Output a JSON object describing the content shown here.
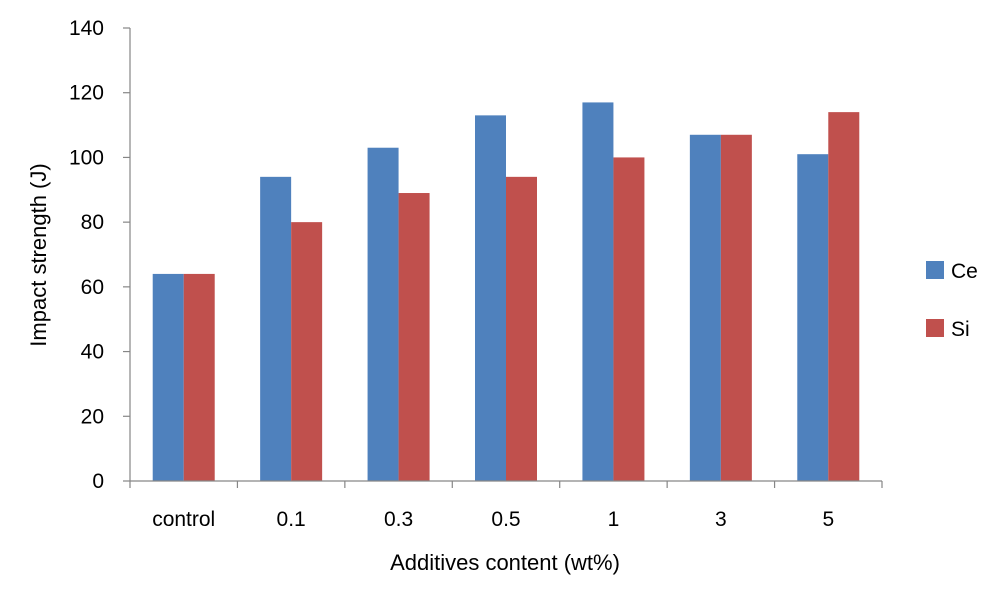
{
  "chart_data": {
    "type": "bar",
    "title": "",
    "xlabel": "Additives content (wt%)",
    "ylabel": "Impact strength (J)",
    "categories": [
      "control",
      "0.1",
      "0.3",
      "0.5",
      "1",
      "3",
      "5"
    ],
    "series": [
      {
        "name": "Ce",
        "color": "#4F81BD",
        "values": [
          64,
          94,
          103,
          113,
          117,
          107,
          101
        ]
      },
      {
        "name": "Si",
        "color": "#C0504D",
        "values": [
          64,
          80,
          89,
          94,
          100,
          107,
          114
        ]
      }
    ],
    "ylim": [
      0,
      140
    ],
    "yticks": [
      0,
      20,
      40,
      60,
      80,
      100,
      120,
      140
    ],
    "grid": false,
    "legend_position": "right"
  }
}
